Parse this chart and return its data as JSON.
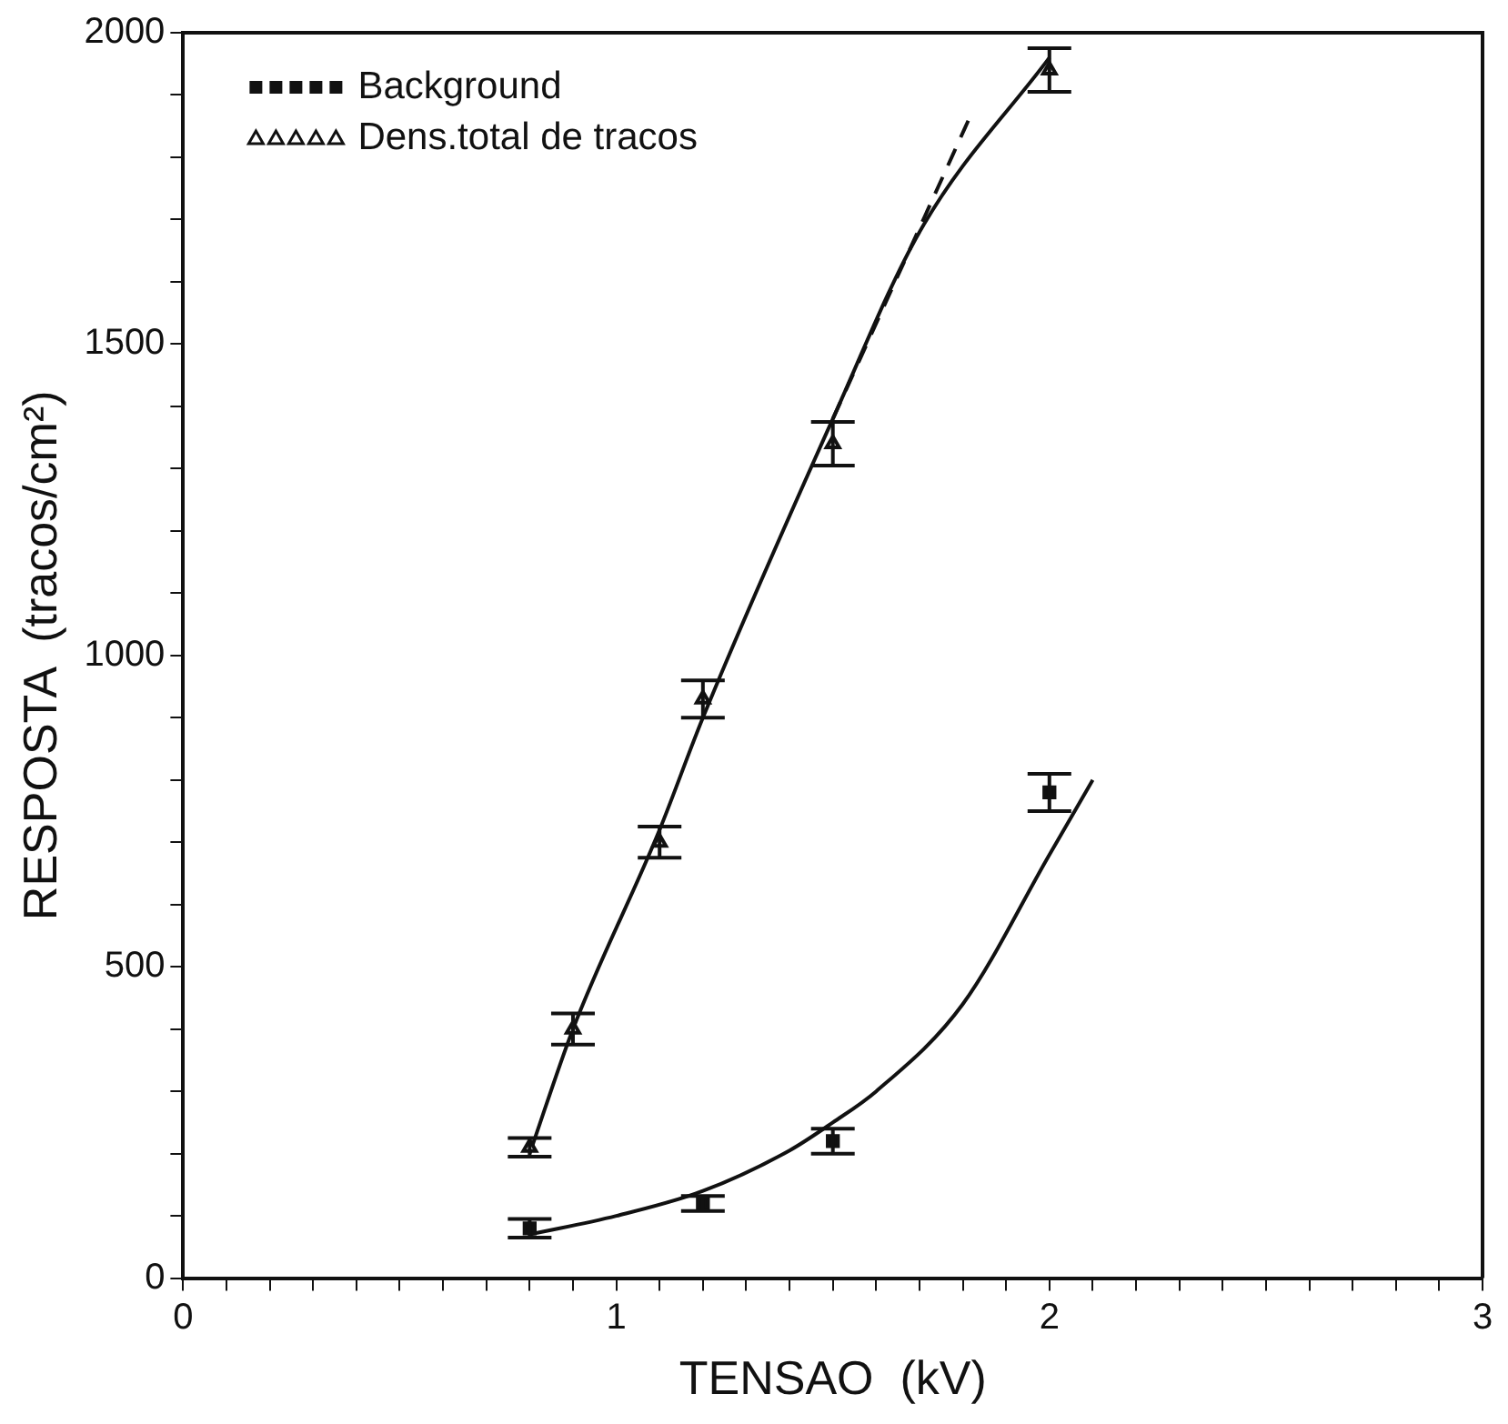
{
  "chart_data": {
    "type": "scatter",
    "xlabel": "TENSAO  (kV)",
    "ylabel": "RESPOSTA  (tracos/cm²)",
    "xlim": [
      0,
      3
    ],
    "ylim": [
      0,
      2000
    ],
    "xticks": [
      0,
      {
        "value": 0.1,
        "label": null
      },
      {
        "value": 0.2,
        "label": null
      },
      {
        "value": 0.3,
        "label": null
      },
      {
        "value": 0.4,
        "label": null
      },
      {
        "value": 0.5,
        "label": null
      },
      {
        "value": 0.6,
        "label": null
      },
      {
        "value": 0.7,
        "label": null
      },
      {
        "value": 0.8,
        "label": null
      },
      {
        "value": 0.9,
        "label": null
      },
      1,
      {
        "value": 1.1,
        "label": null
      },
      {
        "value": 1.2,
        "label": null
      },
      {
        "value": 1.3,
        "label": null
      },
      {
        "value": 1.4,
        "label": null
      },
      {
        "value": 1.5,
        "label": null
      },
      {
        "value": 1.6,
        "label": null
      },
      {
        "value": 1.7,
        "label": null
      },
      {
        "value": 1.8,
        "label": null
      },
      {
        "value": 1.9,
        "label": null
      },
      2,
      {
        "value": 2.1,
        "label": null
      },
      {
        "value": 2.2,
        "label": null
      },
      {
        "value": 2.3,
        "label": null
      },
      {
        "value": 2.4,
        "label": null
      },
      {
        "value": 2.5,
        "label": null
      },
      {
        "value": 2.6,
        "label": null
      },
      {
        "value": 2.7,
        "label": null
      },
      {
        "value": 2.8,
        "label": null
      },
      {
        "value": 2.9,
        "label": null
      },
      3
    ],
    "yticks": [
      0,
      {
        "value": 100,
        "label": null
      },
      {
        "value": 200,
        "label": null
      },
      {
        "value": 300,
        "label": null
      },
      {
        "value": 400,
        "label": null
      },
      500,
      {
        "value": 600,
        "label": null
      },
      {
        "value": 700,
        "label": null
      },
      {
        "value": 800,
        "label": null
      },
      {
        "value": 900,
        "label": null
      },
      1000,
      {
        "value": 1100,
        "label": null
      },
      {
        "value": 1200,
        "label": null
      },
      {
        "value": 1300,
        "label": null
      },
      {
        "value": 1400,
        "label": null
      },
      1500,
      {
        "value": 1600,
        "label": null
      },
      {
        "value": 1700,
        "label": null
      },
      {
        "value": 1800,
        "label": null
      },
      {
        "value": 1900,
        "label": null
      },
      2000
    ],
    "grid": false,
    "legend": "top left",
    "series": [
      {
        "name": "Background",
        "type": "scatter",
        "marker": "square",
        "color": "#111111",
        "x": [
          0.8,
          1.2,
          1.5,
          2.0
        ],
        "values": [
          80,
          120,
          220,
          780
        ],
        "errors": [
          15,
          12,
          20,
          30
        ]
      },
      {
        "name": "Dens.total de tracos",
        "type": "scatter",
        "marker": "triangle",
        "color": "#111111",
        "x": [
          0.8,
          0.9,
          1.1,
          1.2,
          1.5,
          2.0
        ],
        "values": [
          210,
          400,
          700,
          930,
          1340,
          1940
        ],
        "errors": [
          15,
          25,
          25,
          30,
          35,
          35
        ]
      },
      {
        "type": "line",
        "marker": "none",
        "line_style": "solid",
        "color": "#111111",
        "x": [
          0.8,
          1.0,
          1.2,
          1.4,
          1.5,
          1.6,
          1.8,
          2.0,
          2.1
        ],
        "values": [
          70,
          100,
          140,
          205,
          250,
          300,
          440,
          680,
          800
        ]
      },
      {
        "type": "line",
        "marker": "none",
        "line_style": "solid",
        "color": "#111111",
        "x": [
          0.8,
          0.9,
          1.1,
          1.2,
          1.5,
          1.7,
          2.0
        ],
        "values": [
          200,
          400,
          720,
          900,
          1380,
          1680,
          1960
        ]
      },
      {
        "type": "line",
        "marker": "none",
        "line_style": "dashed",
        "color": "#111111",
        "x": [
          1.5,
          1.82
        ],
        "values": [
          1380,
          1870
        ]
      }
    ]
  }
}
